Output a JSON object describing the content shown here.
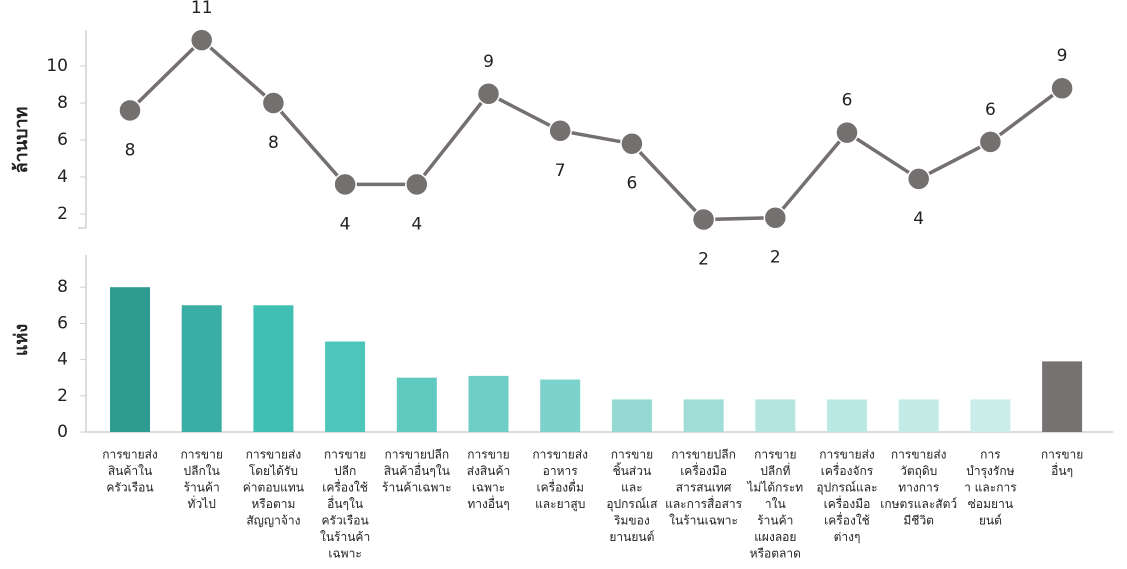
{
  "chart_data": [
    {
      "type": "line",
      "y_label": "ล้านบาท",
      "values": [
        7.6,
        11.4,
        8.0,
        3.6,
        3.6,
        8.5,
        6.5,
        5.8,
        1.7,
        1.8,
        6.4,
        3.9,
        5.9,
        8.8
      ],
      "value_labels": [
        "8",
        "11",
        "8",
        "4",
        "4",
        "9",
        "7",
        "6",
        "2",
        "2",
        "6",
        "4",
        "6",
        "9"
      ],
      "color": "#757070",
      "ylim": [
        1,
        12
      ],
      "yticks": [
        2,
        4,
        6,
        8,
        10
      ]
    },
    {
      "type": "bar",
      "y_label": "แห่ง",
      "categories": [
        [
          "การขายส่ง",
          "สินค้าใน",
          "ครัวเรือน"
        ],
        [
          "การขาย",
          "ปลีกใน",
          "ร้านค้า",
          "ทั่วไป"
        ],
        [
          "การขายส่ง",
          "โดยได้รับ",
          "ค่าตอบแทน",
          "หรือตาม",
          "สัญญาจ้าง"
        ],
        [
          "การขาย",
          "ปลีก",
          "เครื่องใช้",
          "อื่นๆใน",
          "ครัวเรือน",
          "ในร้านค้า",
          "เฉพาะ"
        ],
        [
          "การขายปลีก",
          "สินค้าอื่นๆใน",
          "ร้านค้าเฉพาะ"
        ],
        [
          "การขาย",
          "ส่งสินค้า",
          "เฉพาะ",
          "ทางอื่นๆ"
        ],
        [
          "การขายส่ง",
          "อาหาร",
          "เครื่องดื่ม",
          "และยาสูบ"
        ],
        [
          "การขาย",
          "ชิ้นส่วน",
          "และ",
          "อุปกรณ์เส",
          "ริมของ",
          "ยานยนต์"
        ],
        [
          "การขายปลีก",
          "เครื่องมือ",
          "สารสนเทศ",
          "และการสื่อสาร",
          "ในร้านเฉพาะ"
        ],
        [
          "การขาย",
          "ปลีกที่",
          "ไม่ได้กระท",
          "าใน",
          "ร้านค้า",
          "แผงลอย",
          "หรือตลาด"
        ],
        [
          "การขายส่ง",
          "เครื่องจักร",
          "อุปกรณ์และ",
          "เครื่องมือ",
          "เครื่องใช้",
          "ต่างๆ"
        ],
        [
          "การขายส่ง",
          "วัตถุดิบ",
          "ทางการ",
          "เกษตรและสัตว์",
          "มีชีวิต"
        ],
        [
          "การ",
          "บำรุงรักษ",
          "า และการ",
          "ซ่อมยาน",
          "ยนต์"
        ],
        [
          "การขาย",
          "อื่นๆ"
        ]
      ],
      "values": [
        8,
        7,
        7,
        5,
        3,
        3.1,
        2.9,
        1.8,
        1.8,
        1.8,
        1.8,
        1.8,
        1.8,
        3.9
      ],
      "colors": [
        "#2e9b91",
        "#3aaea4",
        "#40bfb3",
        "#4cc6ba",
        "#5ecac0",
        "#6dcec5",
        "#7dd3cb",
        "#94dad3",
        "#a0ddd7",
        "#b4e5df",
        "#bce8e3",
        "#c2ebe6",
        "#c9eeea",
        "#777272"
      ],
      "ylim": [
        0,
        9.8
      ],
      "yticks": [
        0,
        2,
        4,
        6,
        8
      ]
    }
  ]
}
